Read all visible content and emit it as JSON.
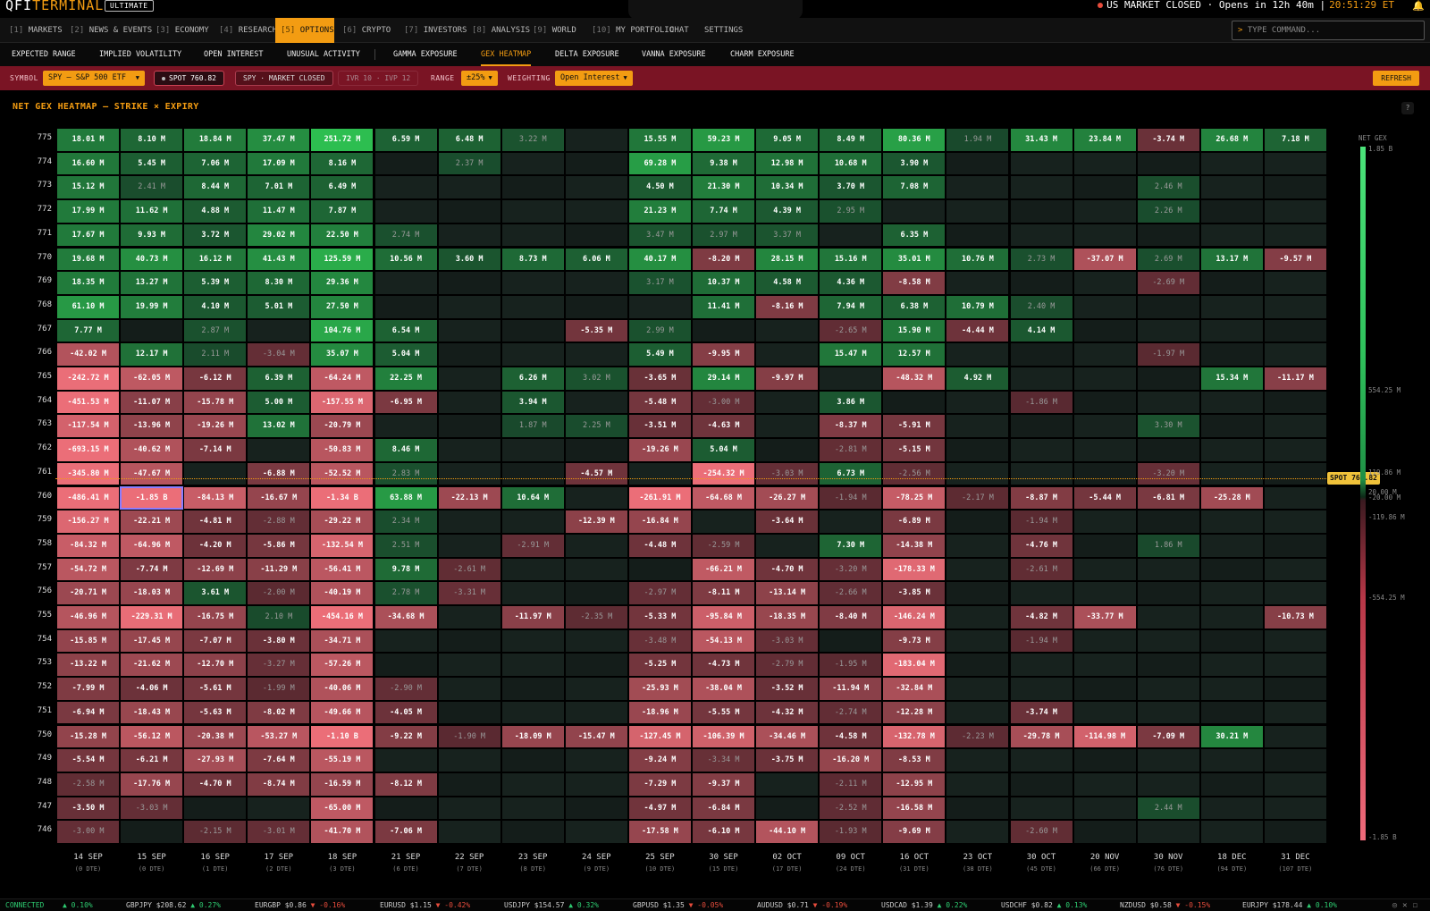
{
  "app": {
    "logo_a": "QFI",
    "logo_b": "TERMINAL",
    "edition": "ULTIMATE"
  },
  "status": {
    "market": "US MARKET CLOSED · Opens in 12h 40m |",
    "clock": "20:51:29 ET"
  },
  "nav": [
    {
      "key": "[1]",
      "label": "MARKETS"
    },
    {
      "key": "[2]",
      "label": "NEWS & EVENTS"
    },
    {
      "key": "[3]",
      "label": "ECONOMY"
    },
    {
      "key": "[4]",
      "label": "RESEARCH"
    },
    {
      "key": "[5]",
      "label": "OPTIONS"
    },
    {
      "key": "[6]",
      "label": "CRYPTO"
    },
    {
      "key": "[7]",
      "label": "INVESTORS"
    },
    {
      "key": "[8]",
      "label": "ANALYSIS"
    },
    {
      "key": "[9]",
      "label": "WORLD"
    },
    {
      "key": "[10]",
      "label": "MY PORTFOLIO"
    },
    {
      "key": "",
      "label": "CHAT"
    },
    {
      "key": "",
      "label": "SETTINGS"
    }
  ],
  "command": {
    "prompt": ">",
    "placeholder": "TYPE COMMAND..."
  },
  "subnav": [
    "EXPECTED RANGE",
    "IMPLIED VOLATILITY",
    "OPEN INTEREST",
    "UNUSUAL ACTIVITY",
    "GAMMA EXPOSURE",
    "GEX HEATMAP",
    "DELTA EXPOSURE",
    "VANNA EXPOSURE",
    "CHARM EXPOSURE"
  ],
  "controls": {
    "symbol_label": "SYMBOL",
    "symbol": "SPY — S&P 500 ETF",
    "spot": "SPOT 760.82",
    "market": "SPY · MARKET CLOSED",
    "ivr": "IVR 10 · IVP 12",
    "range_label": "RANGE",
    "range": "±25%",
    "weighting_label": "WEIGHTING",
    "weighting": "Open Interest",
    "refresh": "REFRESH"
  },
  "heatmap": {
    "title": "NET GEX HEATMAP — STRIKE × EXPIRY",
    "help": "?",
    "spot_tag": "SPOT 760.82",
    "legend_title": "NET GEX",
    "legend_ticks": [
      "1.85 B",
      "554.25 M",
      "119.86 M",
      "20.00 M",
      "-20.00 M",
      "-119.86 M",
      "-554.25 M",
      "-1.85 B"
    ]
  },
  "chart_data": {
    "type": "heatmap",
    "title": "NET GEX HEATMAP — STRIKE × EXPIRY",
    "value_unit": "USD (M = million, B = billion)",
    "strikes": [
      775,
      774,
      773,
      772,
      771,
      770,
      769,
      768,
      767,
      766,
      765,
      764,
      763,
      762,
      761,
      760,
      759,
      758,
      757,
      756,
      755,
      754,
      753,
      752,
      751,
      750,
      749,
      748,
      747,
      746
    ],
    "expiries": [
      "14 SEP",
      "15 SEP",
      "16 SEP",
      "17 SEP",
      "18 SEP",
      "21 SEP",
      "22 SEP",
      "23 SEP",
      "24 SEP",
      "25 SEP",
      "30 SEP",
      "02 OCT",
      "09 OCT",
      "16 OCT",
      "23 OCT",
      "30 OCT",
      "20 NOV",
      "30 NOV",
      "18 DEC",
      "31 DEC"
    ],
    "dte": [
      "(0 DTE)",
      "(0 DTE)",
      "(1 DTE)",
      "(2 DTE)",
      "(3 DTE)",
      "(6 DTE)",
      "(7 DTE)",
      "(8 DTE)",
      "(9 DTE)",
      "(10 DTE)",
      "(15 DTE)",
      "(17 DTE)",
      "(24 DTE)",
      "(31 DTE)",
      "(38 DTE)",
      "(45 DTE)",
      "(66 DTE)",
      "(76 DTE)",
      "(94 DTE)",
      "(107 DTE)"
    ],
    "values_text": [
      [
        "18.01 M",
        "8.10 M",
        "18.84 M",
        "37.47 M",
        "251.72 M",
        "6.59 M",
        "6.48 M",
        "3.22 M",
        "",
        "15.55 M",
        "59.23 M",
        "9.05 M",
        "8.49 M",
        "80.36 M",
        "1.94 M",
        "31.43 M",
        "23.84 M",
        "-3.74 M",
        "26.68 M",
        "7.18 M"
      ],
      [
        "16.60 M",
        "5.45 M",
        "7.06 M",
        "17.09 M",
        "8.16 M",
        "",
        "2.37 M",
        "",
        "",
        "69.28 M",
        "9.38 M",
        "12.98 M",
        "10.68 M",
        "3.90 M",
        "",
        "",
        "",
        "",
        "",
        ""
      ],
      [
        "15.12 M",
        "2.41 M",
        "8.44 M",
        "7.01 M",
        "6.49 M",
        "",
        "",
        "",
        "",
        "4.50 M",
        "21.30 M",
        "10.34 M",
        "3.70 M",
        "7.08 M",
        "",
        "",
        "",
        "2.46 M",
        "",
        ""
      ],
      [
        "17.99 M",
        "11.62 M",
        "4.88 M",
        "11.47 M",
        "7.87 M",
        "",
        "",
        "",
        "",
        "21.23 M",
        "7.74 M",
        "4.39 M",
        "2.95 M",
        "",
        "",
        "",
        "",
        "2.26 M",
        "",
        ""
      ],
      [
        "17.67 M",
        "9.93 M",
        "3.72 M",
        "29.02 M",
        "22.50 M",
        "2.74 M",
        "",
        "",
        "",
        "3.47 M",
        "2.97 M",
        "3.37 M",
        "",
        "6.35 M",
        "",
        "",
        "",
        "",
        "",
        ""
      ],
      [
        "19.68 M",
        "40.73 M",
        "16.12 M",
        "41.43 M",
        "125.59 M",
        "10.56 M",
        "3.60 M",
        "8.73 M",
        "6.06 M",
        "40.17 M",
        "-8.20 M",
        "28.15 M",
        "15.16 M",
        "35.01 M",
        "10.76 M",
        "2.73 M",
        "-37.07 M",
        "2.69 M",
        "13.17 M",
        "-9.57 M"
      ],
      [
        "18.35 M",
        "13.27 M",
        "5.39 M",
        "8.30 M",
        "29.36 M",
        "",
        "",
        "",
        "",
        "3.17 M",
        "10.37 M",
        "4.58 M",
        "4.36 M",
        "-8.58 M",
        "",
        "",
        "",
        "-2.69 M",
        "",
        ""
      ],
      [
        "61.10 M",
        "19.99 M",
        "4.10 M",
        "5.01 M",
        "27.50 M",
        "",
        "",
        "",
        "",
        "",
        "11.41 M",
        "-8.16 M",
        "7.94 M",
        "6.38 M",
        "10.79 M",
        "2.40 M",
        "",
        "",
        "",
        ""
      ],
      [
        "7.77 M",
        "",
        "2.87 M",
        "",
        "104.76 M",
        "6.54 M",
        "",
        "",
        "-5.35 M",
        "2.99 M",
        "",
        "",
        "-2.65 M",
        "15.90 M",
        "-4.44 M",
        "4.14 M",
        "",
        "",
        "",
        ""
      ],
      [
        "-42.02 M",
        "12.17 M",
        "2.11 M",
        "-3.04 M",
        "35.07 M",
        "5.04 M",
        "",
        "",
        "",
        "5.49 M",
        "-9.95 M",
        "",
        "15.47 M",
        "12.57 M",
        "",
        "",
        "",
        "-1.97 M",
        "",
        ""
      ],
      [
        "-242.72 M",
        "-62.05 M",
        "-6.12 M",
        "6.39 M",
        "-64.24 M",
        "22.25 M",
        "",
        "6.26 M",
        "3.02 M",
        "-3.65 M",
        "29.14 M",
        "-9.97 M",
        "",
        "-48.32 M",
        "4.92 M",
        "",
        "",
        "",
        "15.34 M",
        "-11.17 M"
      ],
      [
        "-451.53 M",
        "-11.07 M",
        "-15.78 M",
        "5.00 M",
        "-157.55 M",
        "-6.95 M",
        "",
        "3.94 M",
        "",
        "-5.48 M",
        "-3.00 M",
        "",
        "3.86 M",
        "",
        "",
        "-1.86 M",
        "",
        "",
        "",
        ""
      ],
      [
        "-117.54 M",
        "-13.96 M",
        "-19.26 M",
        "13.02 M",
        "-20.79 M",
        "",
        "",
        "1.87 M",
        "2.25 M",
        "-3.51 M",
        "-4.63 M",
        "",
        "-8.37 M",
        "-5.91 M",
        "",
        "",
        "",
        "3.30 M",
        "",
        ""
      ],
      [
        "-693.15 M",
        "-40.62 M",
        "-7.14 M",
        "",
        "-50.83 M",
        "8.46 M",
        "",
        "",
        "",
        "-19.26 M",
        "5.04 M",
        "",
        "-2.81 M",
        "-5.15 M",
        "",
        "",
        "",
        "",
        "",
        ""
      ],
      [
        "-345.80 M",
        "-47.67 M",
        "",
        "-6.88 M",
        "-52.52 M",
        "2.83 M",
        "",
        "",
        "-4.57 M",
        "",
        "-254.32 M",
        "-3.03 M",
        "6.73 M",
        "-2.56 M",
        "",
        "",
        "",
        "-3.20 M",
        "",
        ""
      ],
      [
        "-486.41 M",
        "-1.85 B",
        "-84.13 M",
        "-16.67 M",
        "-1.34 B",
        "63.88 M",
        "-22.13 M",
        "10.64 M",
        "",
        "-261.91 M",
        "-64.68 M",
        "-26.27 M",
        "-1.94 M",
        "-78.25 M",
        "-2.17 M",
        "-8.87 M",
        "-5.44 M",
        "-6.81 M",
        "-25.28 M",
        ""
      ],
      [
        "-156.27 M",
        "-22.21 M",
        "-4.81 M",
        "-2.88 M",
        "-29.22 M",
        "2.34 M",
        "",
        "",
        "-12.39 M",
        "-16.84 M",
        "",
        "-3.64 M",
        "",
        "-6.89 M",
        "",
        "-1.94 M",
        "",
        "",
        "",
        ""
      ],
      [
        "-84.32 M",
        "-64.96 M",
        "-4.20 M",
        "-5.86 M",
        "-132.54 M",
        "2.51 M",
        "",
        "-2.91 M",
        "",
        "-4.48 M",
        "-2.59 M",
        "",
        "7.30 M",
        "-14.38 M",
        "",
        "-4.76 M",
        "",
        "1.86 M",
        "",
        ""
      ],
      [
        "-54.72 M",
        "-7.74 M",
        "-12.69 M",
        "-11.29 M",
        "-56.41 M",
        "9.78 M",
        "-2.61 M",
        "",
        "",
        "",
        "-66.21 M",
        "-4.70 M",
        "-3.20 M",
        "-178.33 M",
        "",
        "-2.61 M",
        "",
        "",
        "",
        ""
      ],
      [
        "-20.71 M",
        "-18.03 M",
        "3.61 M",
        "-2.00 M",
        "-40.19 M",
        "2.78 M",
        "-3.31 M",
        "",
        "",
        "-2.97 M",
        "-8.11 M",
        "-13.14 M",
        "-2.66 M",
        "-3.85 M",
        "",
        "",
        "",
        "",
        "",
        ""
      ],
      [
        "-46.96 M",
        "-229.31 M",
        "-16.75 M",
        "2.10 M",
        "-454.16 M",
        "-34.68 M",
        "",
        "-11.97 M",
        "-2.35 M",
        "-5.33 M",
        "-95.84 M",
        "-18.35 M",
        "-8.40 M",
        "-146.24 M",
        "",
        "-4.82 M",
        "-33.77 M",
        "",
        "",
        "-10.73 M"
      ],
      [
        "-15.85 M",
        "-17.45 M",
        "-7.07 M",
        "-3.80 M",
        "-34.71 M",
        "",
        "",
        "",
        "",
        "-3.48 M",
        "-54.13 M",
        "-3.03 M",
        "",
        "-9.73 M",
        "",
        "-1.94 M",
        "",
        "",
        "",
        ""
      ],
      [
        "-13.22 M",
        "-21.62 M",
        "-12.70 M",
        "-3.27 M",
        "-57.26 M",
        "",
        "",
        "",
        "",
        "-5.25 M",
        "-4.73 M",
        "-2.79 M",
        "-1.95 M",
        "-183.04 M",
        "",
        "",
        "",
        "",
        "",
        ""
      ],
      [
        "-7.99 M",
        "-4.06 M",
        "-5.61 M",
        "-1.99 M",
        "-40.06 M",
        "-2.90 M",
        "",
        "",
        "",
        "-25.93 M",
        "-38.04 M",
        "-3.52 M",
        "-11.94 M",
        "-32.84 M",
        "",
        "",
        "",
        "",
        "",
        ""
      ],
      [
        "-6.94 M",
        "-18.43 M",
        "-5.63 M",
        "-8.02 M",
        "-49.66 M",
        "-4.05 M",
        "",
        "",
        "",
        "-18.96 M",
        "-5.55 M",
        "-4.32 M",
        "-2.74 M",
        "-12.28 M",
        "",
        "-3.74 M",
        "",
        "",
        "",
        ""
      ],
      [
        "-15.28 M",
        "-56.12 M",
        "-20.38 M",
        "-53.27 M",
        "-1.10 B",
        "-9.22 M",
        "-1.90 M",
        "-18.09 M",
        "-15.47 M",
        "-127.45 M",
        "-106.39 M",
        "-34.46 M",
        "-4.58 M",
        "-132.78 M",
        "-2.23 M",
        "-29.78 M",
        "-114.98 M",
        "-7.09 M",
        "30.21 M",
        ""
      ],
      [
        "-5.54 M",
        "-6.21 M",
        "-27.93 M",
        "-7.64 M",
        "-55.19 M",
        "",
        "",
        "",
        "",
        "-9.24 M",
        "-3.34 M",
        "-3.75 M",
        "-16.20 M",
        "-8.53 M",
        "",
        "",
        "",
        "",
        "",
        ""
      ],
      [
        "-2.58 M",
        "-17.76 M",
        "-4.70 M",
        "-8.74 M",
        "-16.59 M",
        "-8.12 M",
        "",
        "",
        "",
        "-7.29 M",
        "-9.37 M",
        "",
        "-2.11 M",
        "-12.95 M",
        "",
        "",
        "",
        "",
        "",
        ""
      ],
      [
        "-3.50 M",
        "-3.03 M",
        "",
        "",
        "-65.00 M",
        "",
        "",
        "",
        "",
        "-4.97 M",
        "-6.84 M",
        "",
        "-2.52 M",
        "-16.58 M",
        "",
        "",
        "",
        "2.44 M",
        "",
        ""
      ],
      [
        "-3.00 M",
        "",
        "-2.15 M",
        "-3.01 M",
        "-41.70 M",
        "-7.06 M",
        "",
        "",
        "",
        "-17.58 M",
        "-6.10 M",
        "-44.10 M",
        "-1.93 M",
        "-9.69 M",
        "",
        "-2.60 M",
        "",
        "",
        "",
        ""
      ]
    ],
    "spot": 760.82,
    "selected_cell": {
      "strike": 760,
      "expiry": "15 SEP"
    },
    "color_scale": {
      "positive": "#1fa84a",
      "negative": "#e0505e",
      "neutral": "#14241c"
    }
  },
  "statusbar": {
    "connection": "CONNECTED",
    "first": "▲ 0.10%",
    "tickers": [
      {
        "sym": "GBPJPY $208.62",
        "chg": "▲ 0.27%",
        "dir": "up"
      },
      {
        "sym": "EURGBP $0.86",
        "chg": "▼ -0.16%",
        "dir": "dn"
      },
      {
        "sym": "EURUSD $1.15",
        "chg": "▼ -0.42%",
        "dir": "dn"
      },
      {
        "sym": "USDJPY $154.57",
        "chg": "▲ 0.32%",
        "dir": "up"
      },
      {
        "sym": "GBPUSD $1.35",
        "chg": "▼ -0.05%",
        "dir": "dn"
      },
      {
        "sym": "AUDUSD $0.71",
        "chg": "▼ -0.19%",
        "dir": "dn"
      },
      {
        "sym": "USDCAD $1.39",
        "chg": "▲ 0.22%",
        "dir": "up"
      },
      {
        "sym": "USDCHF $0.82",
        "chg": "▲ 0.13%",
        "dir": "up"
      },
      {
        "sym": "NZDUSD $0.58",
        "chg": "▼ -0.15%",
        "dir": "dn"
      },
      {
        "sym": "EURJPY $178.44",
        "chg": "▲ 0.10%",
        "dir": "up"
      }
    ]
  }
}
